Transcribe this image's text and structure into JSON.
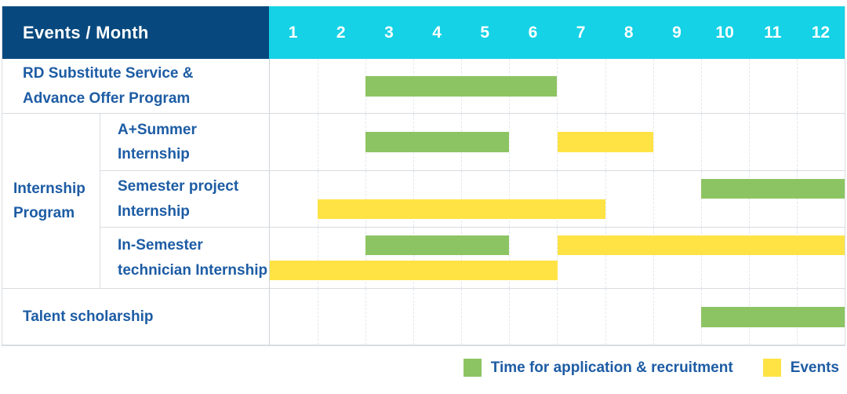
{
  "header": {
    "title": "Events / Month"
  },
  "colors": {
    "recruitment": "#8DC463",
    "event": "#FFE344",
    "header_navy": "#07497E",
    "header_cyan": "#15D2E6",
    "label_blue": "#1D5CA4"
  },
  "legend": {
    "items": [
      {
        "type": "recruitment",
        "label": "Time for application & recruitment"
      },
      {
        "type": "event",
        "label": "Events"
      }
    ]
  },
  "chart_data": {
    "type": "gantt",
    "title": "Events / Month",
    "months": [
      "1",
      "2",
      "3",
      "4",
      "5",
      "6",
      "7",
      "8",
      "9",
      "10",
      "11",
      "12"
    ],
    "x_range": [
      1,
      12
    ],
    "grid": "dashed-vertical-month-lines",
    "legend_position": "bottom-right",
    "group_label_lines": [
      "Internship",
      "Program"
    ],
    "rows": [
      {
        "label": "RD Substitute Service & Advance Offer Program",
        "label_lines": [
          "RD Substitute Service &",
          "Advance Offer Program"
        ],
        "group": null,
        "bars": [
          {
            "type": "recruitment",
            "lane": "center",
            "start": 3,
            "end": 6
          }
        ]
      },
      {
        "label": "A+Summer Internship",
        "label_lines": [
          "A+Summer",
          "Internship"
        ],
        "group": "Internship Program",
        "bars": [
          {
            "type": "recruitment",
            "lane": "center",
            "start": 3,
            "end": 5
          },
          {
            "type": "event",
            "lane": "center",
            "start": 7,
            "end": 8
          }
        ]
      },
      {
        "label": "Semester project Internship",
        "label_lines": [
          "Semester project",
          "Internship"
        ],
        "group": "Internship Program",
        "bars": [
          {
            "type": "recruitment",
            "lane": "top",
            "start": 10,
            "end": 12
          },
          {
            "type": "event",
            "lane": "bottom",
            "start": 2,
            "end": 7
          }
        ]
      },
      {
        "label": "In-Semester technician Internship",
        "label_lines": [
          "In-Semester",
          "technician Internship"
        ],
        "group": "Internship Program",
        "bars": [
          {
            "type": "recruitment",
            "lane": "top",
            "start": 3,
            "end": 5
          },
          {
            "type": "event",
            "lane": "top",
            "start": 7,
            "end": 12
          },
          {
            "type": "event",
            "lane": "bottom",
            "start": 1,
            "end": 6
          }
        ]
      },
      {
        "label": "Talent scholarship",
        "label_lines": [
          "Talent scholarship"
        ],
        "group": null,
        "bars": [
          {
            "type": "recruitment",
            "lane": "center",
            "start": 10,
            "end": 12
          }
        ]
      }
    ]
  }
}
